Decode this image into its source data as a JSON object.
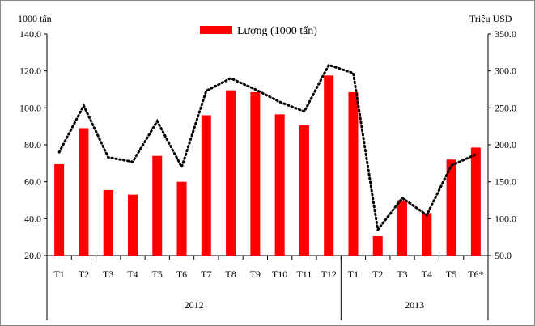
{
  "chart_data": {
    "type": "bar",
    "left_axis_label": "1000 tấn",
    "right_axis_label": "Triệu USD",
    "ylim_left": [
      20,
      140
    ],
    "ylim_right": [
      50,
      350
    ],
    "left_ticks": [
      "20.0",
      "40.0",
      "60.0",
      "80.0",
      "100.0",
      "120.0",
      "140.0"
    ],
    "right_ticks": [
      "50.0",
      "100.0",
      "150.0",
      "200.0",
      "250.0",
      "300.0",
      "350.0"
    ],
    "categories": [
      "T1",
      "T2",
      "T3",
      "T4",
      "T5",
      "T6",
      "T7",
      "T8",
      "T9",
      "T10",
      "T11",
      "T12",
      "T1",
      "T2",
      "T3",
      "T4",
      "T5",
      "T6*"
    ],
    "years": [
      {
        "label": "2012",
        "count": 12
      },
      {
        "label": "2013",
        "count": 6
      }
    ],
    "legend_position": "top-center",
    "grid": false,
    "series": [
      {
        "name": "Lượng (1000 tấn)",
        "type": "bar",
        "axis": "left",
        "color": "#ff0000",
        "values": [
          69.5,
          89,
          55.5,
          53,
          74,
          60,
          96,
          109.5,
          108.5,
          96.5,
          90.5,
          117.5,
          108.5,
          30.5,
          50,
          43,
          72,
          78.5
        ]
      },
      {
        "type": "line",
        "style": "dotted",
        "axis": "right",
        "color": "#000000",
        "values": [
          190,
          253,
          183,
          177,
          232,
          170,
          273,
          290,
          275,
          258,
          245,
          308,
          297,
          85,
          128,
          105,
          172,
          187
        ]
      }
    ]
  }
}
